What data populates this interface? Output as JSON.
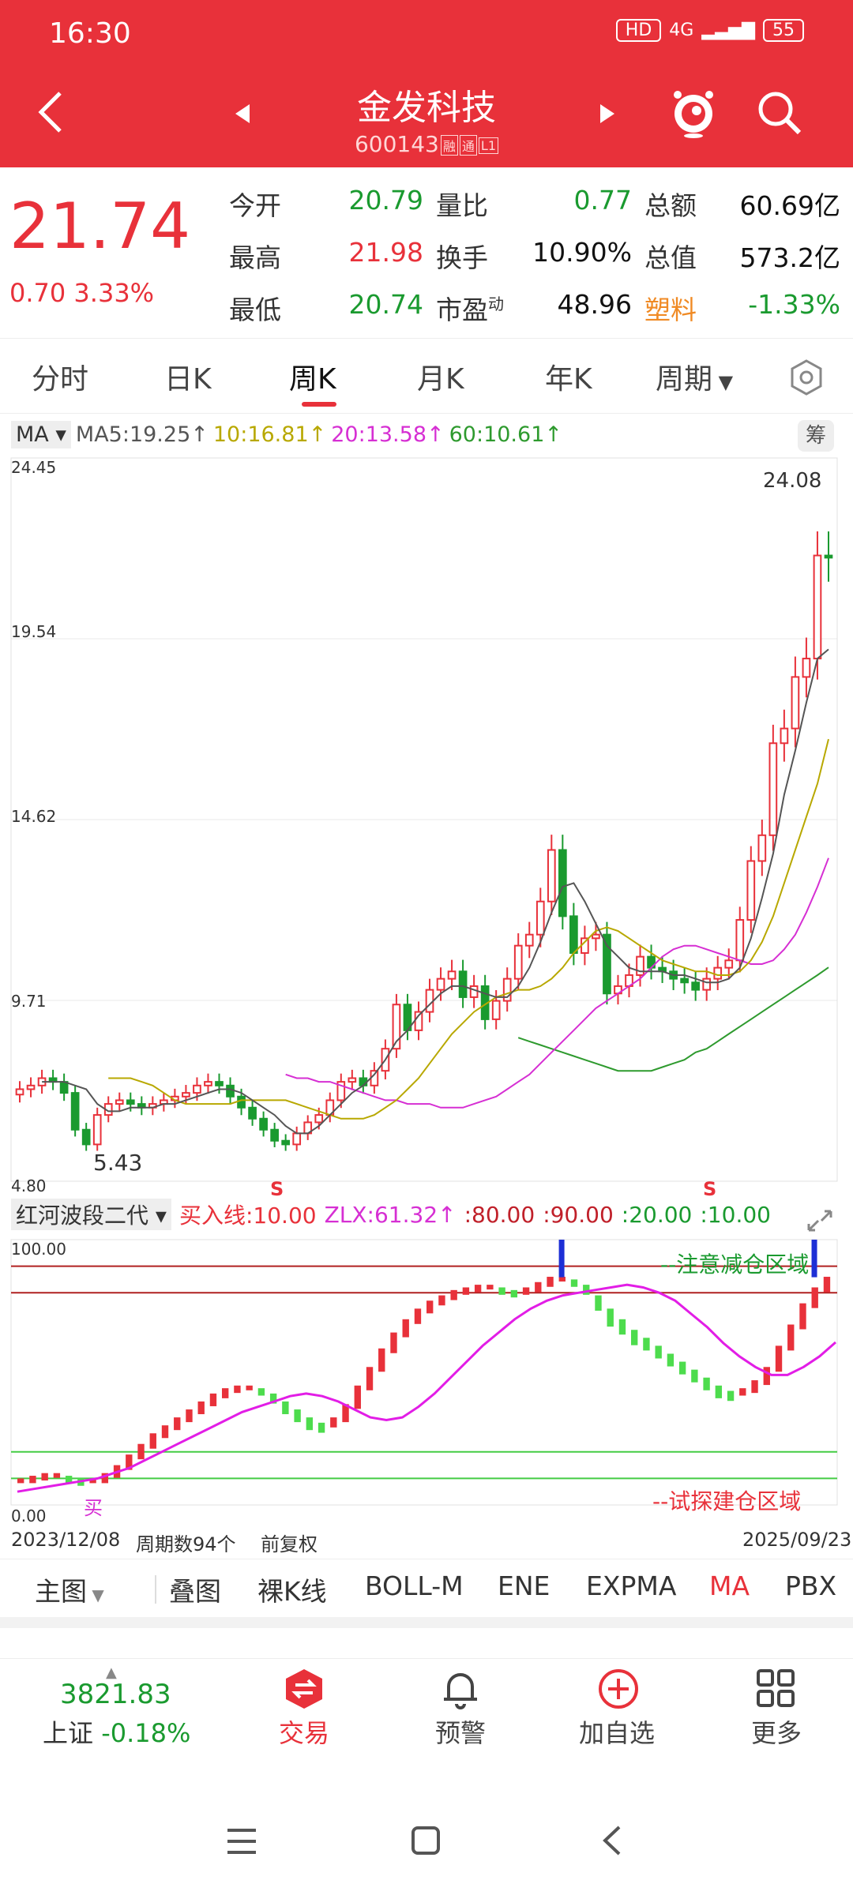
{
  "status": {
    "time": "16:30",
    "hd": "HD",
    "net": "4G",
    "battery": "55"
  },
  "header": {
    "title": "金发科技",
    "code": "600143",
    "tags": [
      "融",
      "通",
      "L1"
    ]
  },
  "quote": {
    "price": "21.74",
    "change": "0.70",
    "change_pct": "3.33%",
    "rows": [
      [
        {
          "label": "今开",
          "value": "20.79",
          "color": "green"
        },
        {
          "label": "量比",
          "value": "0.77",
          "color": "green"
        },
        {
          "label": "总额",
          "value": "60.69亿",
          "color": "black"
        }
      ],
      [
        {
          "label": "最高",
          "value": "21.98",
          "color": "red"
        },
        {
          "label": "换手",
          "value": "10.90%",
          "color": "black"
        },
        {
          "label": "总值",
          "value": "573.2亿",
          "color": "black"
        }
      ],
      [
        {
          "label": "最低",
          "value": "20.74",
          "color": "green"
        },
        {
          "label": "市盈",
          "sup": "动",
          "value": "48.96",
          "color": "black"
        },
        {
          "label": "塑料",
          "value": "-1.33%",
          "color": "green",
          "label_color": "orange"
        }
      ]
    ]
  },
  "tabs": [
    "分时",
    "日K",
    "周K",
    "月K",
    "年K",
    "周期"
  ],
  "tabs_active": 2,
  "ma_legend": {
    "select": "MA",
    "items": [
      {
        "text": "MA5:19.25↑",
        "color": "#555555"
      },
      {
        "text": "10:16.81↑",
        "color": "#b8a800"
      },
      {
        "text": "20:13.58↑",
        "color": "#d62fd3"
      },
      {
        "text": "60:10.61↑",
        "color": "#2e9a2e"
      }
    ],
    "side_btn": "筹"
  },
  "chart_data": {
    "type": "candlestick",
    "y_axis_labels": [
      "24.45",
      "19.54",
      "14.62",
      "9.71",
      "4.80"
    ],
    "ylim": [
      4.8,
      24.45
    ],
    "period_count": 94,
    "max_label": "24.08",
    "min_label": "5.43",
    "markers": [
      "S",
      "S"
    ],
    "closes": [
      7.3,
      7.4,
      7.6,
      7.5,
      7.2,
      6.2,
      5.8,
      6.6,
      6.9,
      7.0,
      6.9,
      6.8,
      6.9,
      7.0,
      7.1,
      7.2,
      7.4,
      7.5,
      7.4,
      7.1,
      6.8,
      6.5,
      6.2,
      5.9,
      5.8,
      6.1,
      6.4,
      6.6,
      7.0,
      7.5,
      7.6,
      7.4,
      7.8,
      8.4,
      9.6,
      8.9,
      9.4,
      10.0,
      10.3,
      10.5,
      9.8,
      10.1,
      9.2,
      9.7,
      10.3,
      11.2,
      11.5,
      12.4,
      13.8,
      12.0,
      11.0,
      11.4,
      11.5,
      9.9,
      10.1,
      10.4,
      10.9,
      10.6,
      10.5,
      10.3,
      10.2,
      10.0,
      10.3,
      10.6,
      10.8,
      11.9,
      13.5,
      14.2,
      16.7,
      17.1,
      18.5,
      19.0,
      21.8,
      21.74
    ],
    "ma5": [
      7.5,
      7.5,
      7.5,
      7.4,
      7.3,
      6.9,
      6.7,
      6.7,
      6.8,
      6.8,
      6.8,
      6.9,
      6.9,
      7.0,
      7.1,
      7.2,
      7.3,
      7.3,
      7.2,
      7.0,
      6.8,
      6.6,
      6.3,
      6.1,
      6.1,
      6.3,
      6.6,
      6.9,
      7.2,
      7.4,
      7.7,
      8.1,
      8.6,
      8.9,
      9.3,
      9.6,
      9.9,
      10.1,
      10.1,
      10.0,
      9.9,
      9.8,
      9.8,
      10.1,
      10.6,
      11.3,
      12.1,
      12.8,
      12.9,
      12.4,
      11.8,
      11.2,
      10.9,
      10.6,
      10.5,
      10.5,
      10.5,
      10.4,
      10.4,
      10.3,
      10.2,
      10.2,
      10.3,
      10.6,
      11.4,
      12.5,
      13.7,
      15.3,
      16.5,
      17.8,
      19.0,
      19.25
    ],
    "ma10": [
      7.6,
      7.6,
      7.6,
      7.5,
      7.4,
      7.2,
      7.0,
      6.9,
      6.9,
      6.9,
      6.9,
      6.9,
      7.0,
      7.0,
      7.0,
      7.0,
      7.0,
      6.9,
      6.8,
      6.7,
      6.6,
      6.5,
      6.5,
      6.5,
      6.6,
      6.8,
      7.0,
      7.3,
      7.6,
      8.0,
      8.4,
      8.8,
      9.1,
      9.4,
      9.6,
      9.8,
      9.9,
      10.0,
      10.0,
      10.1,
      10.3,
      10.6,
      11.0,
      11.3,
      11.6,
      11.7,
      11.6,
      11.4,
      11.2,
      11.0,
      10.8,
      10.7,
      10.6,
      10.5,
      10.5,
      10.4,
      10.4,
      10.5,
      10.8,
      11.3,
      12.0,
      12.9,
      13.8,
      14.7,
      15.6,
      16.81
    ],
    "ma20": [
      7.7,
      7.6,
      7.6,
      7.5,
      7.5,
      7.4,
      7.3,
      7.2,
      7.1,
      7.0,
      7.0,
      6.9,
      6.9,
      6.9,
      6.8,
      6.8,
      6.8,
      6.9,
      7.0,
      7.1,
      7.3,
      7.5,
      7.7,
      8.0,
      8.3,
      8.6,
      8.9,
      9.2,
      9.5,
      9.7,
      9.9,
      10.1,
      10.3,
      10.6,
      10.9,
      11.1,
      11.2,
      11.2,
      11.1,
      11.0,
      10.9,
      10.8,
      10.7,
      10.7,
      10.8,
      11.1,
      11.5,
      12.1,
      12.8,
      13.58
    ],
    "ma60": [
      8.7,
      8.6,
      8.5,
      8.4,
      8.3,
      8.2,
      8.1,
      8.0,
      7.9,
      7.8,
      7.8,
      7.8,
      7.8,
      7.9,
      8.0,
      8.1,
      8.3,
      8.4,
      8.6,
      8.8,
      9.0,
      9.2,
      9.4,
      9.6,
      9.8,
      10.0,
      10.2,
      10.4,
      10.61
    ]
  },
  "indicator": {
    "select": "红河波段二代",
    "buy_line": "买入线:10.00",
    "zlx": "ZLX:61.32↑",
    "levels": [
      ":80.00",
      ":90.00",
      ":20.00",
      ":10.00"
    ],
    "ymax_label": "100.00",
    "ymin_label": "0.00",
    "zone_top": "--注意减仓区域",
    "zone_bottom": "--试探建仓区域",
    "buy_marker": "买",
    "values": [
      10,
      11,
      12,
      12,
      11,
      10,
      10,
      12,
      15,
      19,
      23,
      27,
      30,
      33,
      36,
      39,
      42,
      44,
      45,
      45,
      44,
      42,
      39,
      36,
      33,
      31,
      33,
      38,
      45,
      52,
      59,
      65,
      70,
      74,
      77,
      79,
      81,
      82,
      83,
      83,
      82,
      81,
      82,
      84,
      86,
      86,
      85,
      83,
      79,
      74,
      70,
      66,
      63,
      60,
      57,
      54,
      51,
      48,
      45,
      43,
      44,
      47,
      52,
      60,
      68,
      76,
      82,
      86
    ],
    "zlx_values": [
      5,
      6,
      7,
      8,
      9,
      10,
      12,
      14,
      17,
      20,
      23,
      26,
      29,
      32,
      35,
      37,
      39,
      41,
      42,
      41,
      39,
      36,
      33,
      32,
      33,
      37,
      42,
      48,
      54,
      60,
      65,
      70,
      74,
      77,
      79,
      80,
      81,
      82,
      83,
      82,
      80,
      77,
      72,
      67,
      61,
      56,
      52,
      49,
      49,
      52,
      56,
      61.32
    ]
  },
  "footer": {
    "start_date": "2023/12/08",
    "periods": "周期数94个",
    "adj": "前复权",
    "end_date": "2025/09/23"
  },
  "tools": [
    "主图",
    "叠图",
    "裸K线",
    "BOLL-M",
    "ENE",
    "EXPMA",
    "MA",
    "PBX"
  ],
  "tools_active": 6,
  "market": {
    "index": "3821.83",
    "name": "上证",
    "pct": "-0.18%"
  },
  "bottom_nav": [
    "交易",
    "预警",
    "加自选",
    "更多"
  ],
  "colors": {
    "brand": "#e8313a",
    "up": "#e8313a",
    "down": "#1a9a2f"
  }
}
